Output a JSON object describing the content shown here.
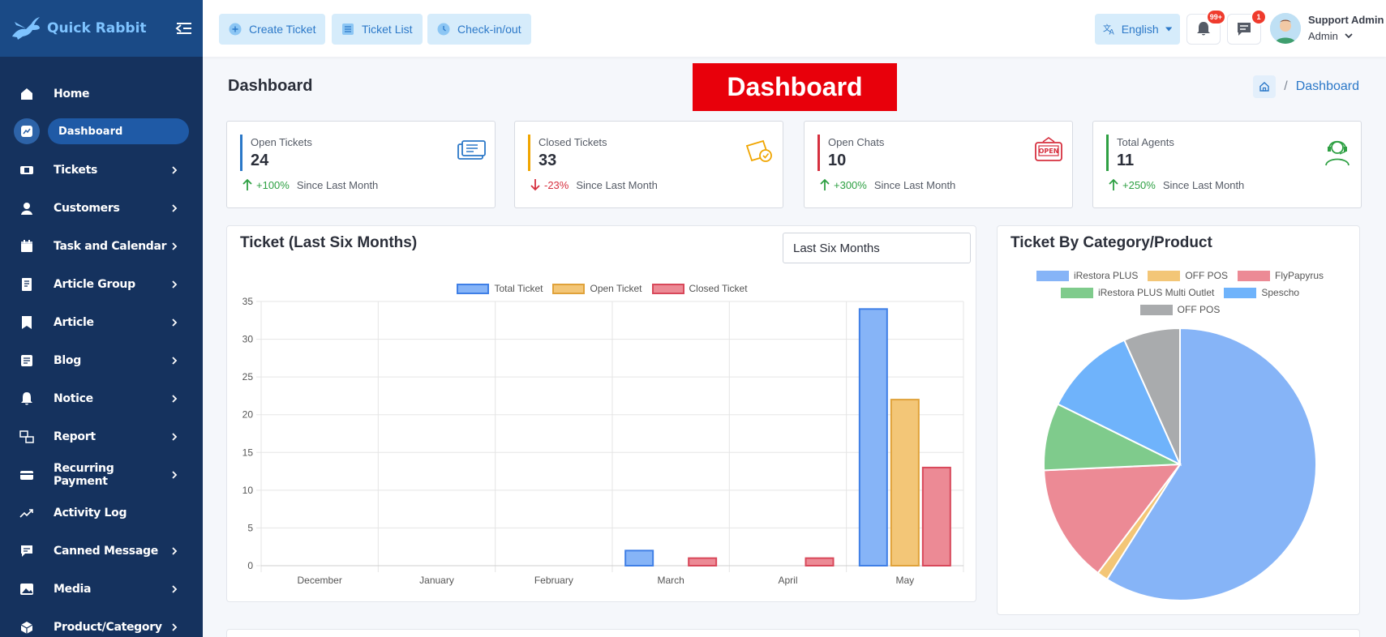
{
  "app": {
    "name": "Quick Rabbit"
  },
  "sidebar": {
    "items": [
      {
        "label": "Home",
        "icon": "home-icon",
        "chevron": false
      },
      {
        "label": "Dashboard",
        "icon": "dashboard-icon",
        "chevron": false,
        "active": true
      },
      {
        "label": "Tickets",
        "icon": "ticket-icon",
        "chevron": true
      },
      {
        "label": "Customers",
        "icon": "user-icon",
        "chevron": true
      },
      {
        "label": "Task and Calendar",
        "icon": "calendar-icon",
        "chevron": true
      },
      {
        "label": "Article Group",
        "icon": "article-group-icon",
        "chevron": true
      },
      {
        "label": "Article",
        "icon": "article-icon",
        "chevron": true
      },
      {
        "label": "Blog",
        "icon": "blog-icon",
        "chevron": true
      },
      {
        "label": "Notice",
        "icon": "bell-icon",
        "chevron": true
      },
      {
        "label": "Report",
        "icon": "report-icon",
        "chevron": true
      },
      {
        "label": "Recurring Payment",
        "icon": "payment-icon",
        "chevron": true
      },
      {
        "label": "Activity Log",
        "icon": "activity-icon",
        "chevron": false
      },
      {
        "label": "Canned Message",
        "icon": "message-icon",
        "chevron": true
      },
      {
        "label": "Media",
        "icon": "image-icon",
        "chevron": true
      },
      {
        "label": "Product/Category",
        "icon": "product-icon",
        "chevron": true
      }
    ]
  },
  "topbar": {
    "create_ticket": "Create Ticket",
    "ticket_list": "Ticket List",
    "checkin": "Check-in/out",
    "language": "English",
    "notif_badge": "99+",
    "msg_badge": "1",
    "user_name": "Support Admin",
    "user_role": "Admin"
  },
  "page": {
    "title": "Dashboard",
    "banner": "Dashboard",
    "breadcrumb": "Dashboard"
  },
  "stats": [
    {
      "title": "Open Tickets",
      "value": "24",
      "change": "+100%",
      "direction": "up",
      "note": "Since Last Month",
      "color": "#2b78c8",
      "icon": "ticket-icon"
    },
    {
      "title": "Closed Tickets",
      "value": "33",
      "change": "-23%",
      "direction": "down",
      "note": "Since Last Month",
      "color": "#f0a500",
      "icon": "closed-ticket-icon"
    },
    {
      "title": "Open Chats",
      "value": "10",
      "change": "+300%",
      "direction": "up",
      "note": "Since Last Month",
      "color": "#d6303f",
      "icon": "open-sign-icon"
    },
    {
      "title": "Total Agents",
      "value": "11",
      "change": "+250%",
      "direction": "up",
      "note": "Since Last Month",
      "color": "#2ea043",
      "icon": "agent-headset-icon"
    }
  ],
  "ticket_panel": {
    "title": "Ticket (Last Six Months)",
    "select_value": "Last Six Months"
  },
  "category_panel": {
    "title": "Ticket By Category/Product"
  },
  "chart_data": [
    {
      "type": "bar",
      "categories": [
        "December",
        "January",
        "February",
        "March",
        "April",
        "May"
      ],
      "series": [
        {
          "name": "Total Ticket",
          "values": [
            0,
            0,
            0,
            2,
            0,
            34
          ],
          "color": "#86b4f7"
        },
        {
          "name": "Open Ticket",
          "values": [
            0,
            0,
            0,
            0,
            0,
            22
          ],
          "color": "#f3c677"
        },
        {
          "name": "Closed Ticket",
          "values": [
            0,
            0,
            0,
            1,
            1,
            13
          ],
          "color": "#ec8a95"
        }
      ],
      "ylim": [
        0,
        35
      ],
      "yticks": [
        0,
        5,
        10,
        15,
        20,
        25,
        30,
        35
      ],
      "grid": true,
      "legend": "top"
    },
    {
      "type": "pie",
      "series": [
        {
          "name": "iRestora PLUS",
          "value": 59,
          "color": "#86b4f7"
        },
        {
          "name": "OFF POS",
          "value": 1.3,
          "color": "#f3c677"
        },
        {
          "name": "FlyPapyrus",
          "value": 14,
          "color": "#ec8a95"
        },
        {
          "name": "iRestora PLUS Multi Outlet",
          "value": 8,
          "color": "#7fcb8c"
        },
        {
          "name": "Spescho",
          "value": 11,
          "color": "#6fb3fb"
        },
        {
          "name": "OFF POS",
          "value": 6.7,
          "color": "#a9abad"
        }
      ],
      "legend": "top"
    }
  ]
}
